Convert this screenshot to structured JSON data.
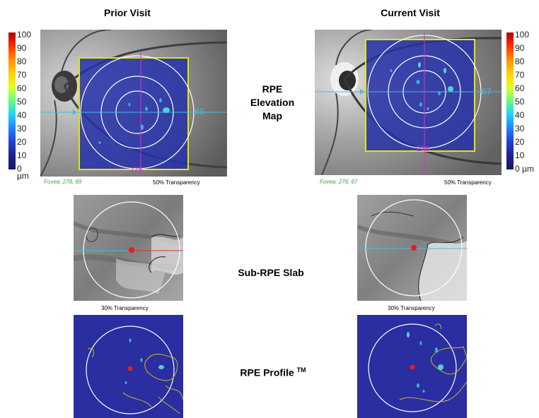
{
  "headers": {
    "prior": "Prior Visit",
    "current": "Current Visit"
  },
  "row_labels": {
    "elevation_line1": "RPE",
    "elevation_line2": "Elevation",
    "elevation_line3": "Map",
    "slab": "Sub-RPE Slab",
    "profile": "RPE Profile",
    "profile_tm": "TM"
  },
  "prior": {
    "fovea": "Fovea: 278, 69",
    "transparency_map": "50% Transparency",
    "transparency_slab": "30% Transparency",
    "x_marker": "278",
    "y_marker": "69"
  },
  "current": {
    "fovea": "Fovea: 276, 67",
    "transparency_map": "50% Transparency",
    "transparency_slab": "30% Transparency",
    "x_marker": "276",
    "y_marker": "67"
  },
  "color_scale": {
    "ticks": [
      "100",
      "90",
      "80",
      "70",
      "60",
      "50",
      "40",
      "30",
      "20",
      "10",
      "0 µm"
    ],
    "colors": [
      "#b00000",
      "#ff3000",
      "#ff9000",
      "#ffd000",
      "#e0ff20",
      "#60ff80",
      "#20d0ff",
      "#2080ff",
      "#2040d0",
      "#202090",
      "#181860"
    ]
  }
}
